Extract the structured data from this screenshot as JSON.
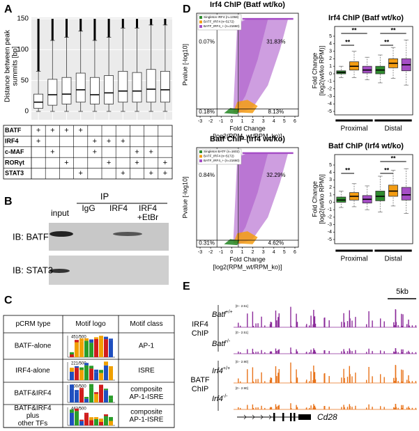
{
  "panel_labels": {
    "a": "A",
    "b": "B",
    "c": "C",
    "d": "D",
    "e": "E"
  },
  "chart_data": [
    {
      "type": "box",
      "y_label": [
        "Distance between peak",
        "summits [bp]"
      ],
      "ylim": [
        0,
        150
      ],
      "yticks": [
        0,
        50,
        100,
        150
      ],
      "grid": true,
      "background": "#ebebeb",
      "color": "#ffffff",
      "categories": [
        null,
        null,
        null,
        null,
        null,
        null,
        null,
        null,
        null,
        null
      ],
      "boxes": [
        {
          "low": 0,
          "q1": 5,
          "median": 15,
          "q3": 28,
          "high": 65,
          "outliers_max": 150
        },
        {
          "low": 0,
          "q1": 10,
          "median": 27,
          "q3": 52,
          "high": 115,
          "outliers_max": 150
        },
        {
          "low": 0,
          "q1": 12,
          "median": 28,
          "q3": 55,
          "high": 120,
          "outliers_max": 150
        },
        {
          "low": 0,
          "q1": 15,
          "median": 35,
          "q3": 62,
          "high": 130,
          "outliers_max": 150
        },
        {
          "low": 0,
          "q1": 12,
          "median": 27,
          "q3": 55,
          "high": 115,
          "outliers_max": 150
        },
        {
          "low": 0,
          "q1": 12,
          "median": 30,
          "q3": 58,
          "high": 120,
          "outliers_max": 150
        },
        {
          "low": 0,
          "q1": 15,
          "median": 33,
          "q3": 65,
          "high": 135,
          "outliers_max": 150
        },
        {
          "low": 0,
          "q1": 15,
          "median": 33,
          "q3": 63,
          "high": 135,
          "outliers_max": 150
        },
        {
          "low": 0,
          "q1": 15,
          "median": 36,
          "q3": 68,
          "high": 140,
          "outliers_max": 150
        },
        {
          "low": 0,
          "q1": 15,
          "median": 35,
          "q3": 65,
          "high": 140,
          "outliers_max": 150
        }
      ]
    },
    {
      "type": "scatter",
      "title": "Irf4 ChIP (Batf wt/ko)",
      "x_label": [
        "Fold Change",
        "[log2(RPM_wt/RPM_ko)]"
      ],
      "y_label": "Pvalue [-log10]",
      "xlim": [
        -3,
        6
      ],
      "xticks": [
        -3,
        -2,
        -1,
        0,
        1,
        2,
        3,
        4,
        5,
        6
      ],
      "series": [
        {
          "name": "Singleton IRF4 (n=1058)",
          "color": "#2e8b2e"
        },
        {
          "name": "BATF_IRF4 (n=5172)",
          "color": "#f39c12"
        },
        {
          "name": "BATF_IRF4_+ (n=21660)",
          "color": "#a64ec6"
        }
      ],
      "quadrant_labels": [
        "0.07%",
        "31.83%",
        "0.18%",
        "8.13%"
      ]
    },
    {
      "type": "box",
      "title": "Irf4 ChIP (Batf wt/ko)",
      "y_label": [
        "Fold Change",
        "[log2(wt/ko RPM)]"
      ],
      "ylim": [
        -5,
        5
      ],
      "yticks": [
        -5,
        -4,
        -3,
        -2,
        -1,
        0,
        1,
        2,
        3,
        4,
        5
      ],
      "categories": [
        null,
        null,
        null,
        null,
        null,
        null
      ],
      "colors": [
        "#2e8b2e",
        "#f39c12",
        "#a64ec6",
        "#2e8b2e",
        "#f39c12",
        "#a64ec6"
      ],
      "groups": [
        "Proximal",
        "Distal"
      ],
      "significance": [
        {
          "label": "**",
          "pair": [
            0,
            2
          ]
        },
        {
          "label": "**",
          "pair": [
            0,
            1
          ]
        },
        {
          "label": "**",
          "pair": [
            3,
            5
          ]
        },
        {
          "label": "**",
          "pair": [
            3,
            4
          ]
        }
      ],
      "boxes": [
        {
          "low": -0.5,
          "q1": 0,
          "median": 0.2,
          "q3": 0.4,
          "high": 1
        },
        {
          "low": -0.5,
          "q1": 0.5,
          "median": 1,
          "q3": 1.6,
          "high": 3
        },
        {
          "low": -0.8,
          "q1": 0.1,
          "median": 0.5,
          "q3": 1,
          "high": 2.2
        },
        {
          "low": -1.2,
          "q1": 0,
          "median": 0.5,
          "q3": 1,
          "high": 2.5
        },
        {
          "low": -0.6,
          "q1": 0.8,
          "median": 1.4,
          "q3": 2,
          "high": 3.5
        },
        {
          "low": -1.5,
          "q1": 0.4,
          "median": 1.2,
          "q3": 2,
          "high": 4.5
        }
      ]
    },
    {
      "type": "scatter",
      "title": "Batf ChIP (Irf4 wt/ko)",
      "x_label": [
        "Fold Change",
        "[log2(RPM_wt/RPM_ko)]"
      ],
      "y_label": "Pvalue [-log10]",
      "xlim": [
        -3,
        6
      ],
      "xticks": [
        -3,
        -2,
        -1,
        0,
        1,
        2,
        3,
        4,
        5,
        6
      ],
      "series": [
        {
          "name": "Singleton BATF (n=1602)",
          "color": "#2e8b2e"
        },
        {
          "name": "BATF_IRF4 (n=5172)",
          "color": "#f39c12"
        },
        {
          "name": "BATF_IRF4_+ (n=21660)",
          "color": "#a64ec6"
        }
      ],
      "quadrant_labels": [
        "0.84%",
        "32.29%",
        "0.31%",
        "4.62%"
      ]
    },
    {
      "type": "box",
      "title": "Batf ChIP (Irf4 wt/ko)",
      "y_label": [
        "Fold Change",
        "[log2(wt/ko RPM)]"
      ],
      "ylim": [
        -5,
        5
      ],
      "yticks": [
        -5,
        -4,
        -3,
        -2,
        -1,
        0,
        1,
        2,
        3,
        4,
        5
      ],
      "categories": [
        null,
        null,
        null,
        null,
        null,
        null
      ],
      "colors": [
        "#2e8b2e",
        "#f39c12",
        "#a64ec6",
        "#2e8b2e",
        "#f39c12",
        "#a64ec6"
      ],
      "groups": [
        "Proximal",
        "Distal"
      ],
      "significance": [
        {
          "label": "**",
          "pair": [
            0,
            1
          ]
        },
        {
          "label": "**",
          "pair": [
            3,
            5
          ]
        },
        {
          "label": "**",
          "pair": [
            3,
            4
          ]
        }
      ],
      "boxes": [
        {
          "low": -0.7,
          "q1": 0,
          "median": 0.3,
          "q3": 0.7,
          "high": 1.5
        },
        {
          "low": -0.6,
          "q1": 0.3,
          "median": 0.8,
          "q3": 1.3,
          "high": 2.5
        },
        {
          "low": -1,
          "q1": -0.1,
          "median": 0.4,
          "q3": 0.9,
          "high": 2.2
        },
        {
          "low": -1.3,
          "q1": 0.2,
          "median": 0.8,
          "q3": 1.5,
          "high": 3.5
        },
        {
          "low": -0.5,
          "q1": 0.8,
          "median": 1.5,
          "q3": 2.3,
          "high": 4.3
        },
        {
          "low": -1.5,
          "q1": 0.3,
          "median": 1,
          "q3": 2,
          "high": 4.5
        }
      ]
    }
  ],
  "table_a": {
    "rows": [
      {
        "label": "BATF",
        "cells": [
          "+",
          "+",
          "+",
          "+",
          null,
          null,
          null,
          null,
          null,
          null
        ]
      },
      {
        "label": "IRF4",
        "cells": [
          "+",
          null,
          null,
          null,
          "+",
          "+",
          "+",
          null,
          null,
          null
        ]
      },
      {
        "label": "c-MAF",
        "cells": [
          null,
          "+",
          null,
          null,
          "+",
          null,
          null,
          "+",
          "+",
          null
        ]
      },
      {
        "label": "RORγt",
        "cells": [
          null,
          null,
          "+",
          null,
          null,
          "+",
          null,
          "+",
          null,
          "+"
        ]
      },
      {
        "label": "STAT3",
        "cells": [
          null,
          null,
          null,
          "+",
          null,
          null,
          "+",
          null,
          "+",
          "+"
        ]
      }
    ]
  },
  "blot": {
    "ip": "IP",
    "lanes": [
      [
        "input"
      ],
      [
        "IgG"
      ],
      [
        "IRF4"
      ],
      [
        "IRF4",
        "+EtBr"
      ]
    ],
    "rows": [
      "IB:  BATF",
      "IB:  STAT3"
    ]
  },
  "motif_table": {
    "header": [
      "pCRM type",
      "Motif logo",
      "Motif class"
    ],
    "rows": [
      {
        "type": [
          "BATF-alone"
        ],
        "count": "451/500",
        "class": [
          "AP-1"
        ]
      },
      {
        "type": [
          "IRF4-alone"
        ],
        "count": "221/500",
        "class": [
          "ISRE"
        ]
      },
      {
        "type": [
          "BATF&IRF4"
        ],
        "count": "100/500",
        "class": [
          "composite",
          "AP-1-ISRE"
        ]
      },
      {
        "type": [
          "BATF&IRF4",
          "plus",
          "other TFs"
        ],
        "count": "442/500",
        "class": [
          "composite",
          "AP-1-ISRE"
        ]
      }
    ]
  },
  "tracks": {
    "scale_bar": "5kb",
    "groups": [
      [
        "IRF4",
        "ChIP"
      ],
      [
        "BATF",
        "ChIP"
      ]
    ],
    "rows": [
      {
        "gene": "Batf",
        "genotype": "+/+",
        "scale": "[0 - 2.51]"
      },
      {
        "gene": "Batf",
        "genotype": "-/-",
        "scale": "[0 - 2.51]"
      },
      {
        "gene": "Irf4",
        "genotype": "+/+",
        "scale": "[0 - 2.90]"
      },
      {
        "gene": "Irf4",
        "genotype": "-/-",
        "scale": "[0 - 2.90]"
      }
    ],
    "gene_name": "Cd28"
  }
}
